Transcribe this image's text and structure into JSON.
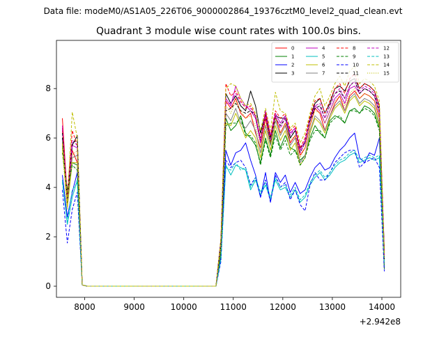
{
  "chart_data": {
    "type": "line",
    "suptitle": "Data file: modeM0/AS1A05_226T06_9000002864_19376cztM0_level2_quad_clean.evt",
    "title": "Quadrant 3 module wise count rates with 100.0s bins.",
    "xlabel": "",
    "ylabel": "",
    "x_offset_label": "+2.942e8",
    "x_offset": 294200000,
    "xlim": [
      7430,
      14380
    ],
    "ylim": [
      -0.45,
      9.95
    ],
    "xticks": [
      8000,
      9000,
      10000,
      11000,
      12000,
      13000,
      14000
    ],
    "xtick_labels": [
      "8000",
      "9000",
      "10000",
      "11000",
      "12000",
      "13000",
      "14000"
    ],
    "yticks": [
      0,
      2,
      4,
      6,
      8
    ],
    "ytick_labels": [
      "0",
      "2",
      "4",
      "6",
      "8"
    ],
    "legend_position": "top-right",
    "x": [
      7550,
      7650,
      7750,
      7850,
      7950,
      8050,
      8150,
      8250,
      8350,
      8450,
      8550,
      8650,
      8750,
      8850,
      8950,
      9050,
      9150,
      9250,
      9350,
      9450,
      9550,
      9650,
      9750,
      9850,
      9950,
      10050,
      10150,
      10250,
      10350,
      10450,
      10550,
      10650,
      10750,
      10850,
      10950,
      11050,
      11150,
      11250,
      11350,
      11450,
      11550,
      11650,
      11750,
      11850,
      11950,
      12050,
      12150,
      12250,
      12350,
      12450,
      12550,
      12650,
      12750,
      12850,
      12950,
      13050,
      13150,
      13250,
      13350,
      13450,
      13550,
      13650,
      13750,
      13850,
      13950,
      14050
    ],
    "series": [
      {
        "name": "0",
        "color": "#ff0000",
        "dash": "solid",
        "values": [
          6.8,
          3.6,
          5.5,
          5.0,
          0.05,
          0,
          0,
          0,
          0,
          0,
          0,
          0,
          0,
          0,
          0,
          0,
          0,
          0,
          0,
          0,
          0,
          0,
          0,
          0,
          0,
          0,
          0,
          0,
          0,
          0,
          0,
          0,
          1.8,
          7.5,
          7.2,
          7.6,
          7.0,
          6.8,
          7.0,
          6.2,
          5.6,
          6.8,
          5.8,
          6.9,
          6.2,
          6.6,
          5.8,
          6.1,
          5.3,
          5.6,
          6.5,
          7.2,
          7.0,
          6.3,
          6.9,
          7.4,
          7.7,
          7.1,
          7.7,
          7.9,
          7.6,
          7.8,
          7.7,
          7.5,
          6.8,
          1.5
        ]
      },
      {
        "name": "1",
        "color": "#008000",
        "dash": "solid",
        "values": [
          5.6,
          3.9,
          5.0,
          4.9,
          0.05,
          0,
          0,
          0,
          0,
          0,
          0,
          0,
          0,
          0,
          0,
          0,
          0,
          0,
          0,
          0,
          0,
          0,
          0,
          0,
          0,
          0,
          0,
          0,
          0,
          0,
          0,
          0,
          1.4,
          6.8,
          6.3,
          6.5,
          6.9,
          6.2,
          6.0,
          5.7,
          5.0,
          6.0,
          5.3,
          6.3,
          5.6,
          6.1,
          5.6,
          5.5,
          5.1,
          5.3,
          6.0,
          6.5,
          6.2,
          6.0,
          6.7,
          6.9,
          6.8,
          6.6,
          7.1,
          7.2,
          7.0,
          7.3,
          7.2,
          7.0,
          6.4,
          0.7
        ]
      },
      {
        "name": "2",
        "color": "#0000ff",
        "dash": "solid",
        "values": [
          4.5,
          2.8,
          3.8,
          4.6,
          0.05,
          0,
          0,
          0,
          0,
          0,
          0,
          0,
          0,
          0,
          0,
          0,
          0,
          0,
          0,
          0,
          0,
          0,
          0,
          0,
          0,
          0,
          0,
          0,
          0,
          0,
          0,
          0,
          1.2,
          5.5,
          4.9,
          5.4,
          5.5,
          5.8,
          5.1,
          4.5,
          3.6,
          4.6,
          3.4,
          4.6,
          4.2,
          4.5,
          3.8,
          4.2,
          3.75,
          3.9,
          4.4,
          4.8,
          5.0,
          4.7,
          4.8,
          5.2,
          5.5,
          5.7,
          6.0,
          6.2,
          5.2,
          5.0,
          5.4,
          5.3,
          6.0,
          1.2
        ]
      },
      {
        "name": "3",
        "color": "#000000",
        "dash": "solid",
        "values": [
          6.0,
          3.5,
          5.7,
          6.1,
          0.05,
          0,
          0,
          0,
          0,
          0,
          0,
          0,
          0,
          0,
          0,
          0,
          0,
          0,
          0,
          0,
          0,
          0,
          0,
          0,
          0,
          0,
          0,
          0,
          0,
          0,
          0,
          0,
          1.9,
          7.8,
          7.4,
          7.7,
          7.3,
          7.1,
          7.9,
          7.3,
          6.2,
          7.0,
          6.0,
          6.9,
          6.8,
          6.8,
          6.0,
          6.3,
          5.6,
          5.8,
          6.8,
          7.4,
          7.6,
          7.0,
          7.4,
          8.0,
          8.1,
          7.9,
          8.3,
          8.4,
          8.0,
          8.2,
          8.1,
          7.9,
          7.3,
          1.4
        ]
      },
      {
        "name": "4",
        "color": "#bf00bf",
        "dash": "solid",
        "values": [
          6.4,
          3.3,
          5.7,
          5.6,
          0.05,
          0,
          0,
          0,
          0,
          0,
          0,
          0,
          0,
          0,
          0,
          0,
          0,
          0,
          0,
          0,
          0,
          0,
          0,
          0,
          0,
          0,
          0,
          0,
          0,
          0,
          0,
          0,
          1.8,
          7.6,
          7.3,
          8.1,
          7.6,
          7.3,
          7.1,
          6.8,
          5.8,
          7.1,
          6.1,
          7.0,
          6.6,
          6.9,
          6.2,
          6.4,
          5.5,
          5.9,
          6.7,
          7.3,
          7.1,
          6.6,
          7.1,
          7.6,
          7.8,
          7.4,
          8.0,
          8.1,
          7.8,
          8.0,
          7.9,
          7.7,
          7.0,
          1.3
        ]
      },
      {
        "name": "5",
        "color": "#00bfbf",
        "dash": "solid",
        "values": [
          4.3,
          2.5,
          3.6,
          4.3,
          0.05,
          0,
          0,
          0,
          0,
          0,
          0,
          0,
          0,
          0,
          0,
          0,
          0,
          0,
          0,
          0,
          0,
          0,
          0,
          0,
          0,
          0,
          0,
          0,
          0,
          0,
          0,
          0,
          1.1,
          4.9,
          4.5,
          4.9,
          4.8,
          4.7,
          3.9,
          4.3,
          3.7,
          4.1,
          3.5,
          4.3,
          3.9,
          4.0,
          3.6,
          3.9,
          3.4,
          3.6,
          4.1,
          4.4,
          4.6,
          4.3,
          4.5,
          4.8,
          5.0,
          5.1,
          5.3,
          5.4,
          5.0,
          5.1,
          5.2,
          5.1,
          5.2,
          0.9
        ]
      },
      {
        "name": "6",
        "color": "#bfbf00",
        "dash": "solid",
        "values": [
          5.7,
          3.2,
          5.0,
          5.0,
          0.05,
          0,
          0,
          0,
          0,
          0,
          0,
          0,
          0,
          0,
          0,
          0,
          0,
          0,
          0,
          0,
          0,
          0,
          0,
          0,
          0,
          0,
          0,
          0,
          0,
          0,
          0,
          0,
          1.5,
          6.6,
          6.5,
          7.0,
          6.5,
          6.0,
          6.3,
          6.0,
          5.2,
          6.3,
          5.5,
          6.5,
          5.9,
          6.3,
          5.5,
          5.8,
          4.9,
          5.2,
          6.2,
          6.8,
          6.6,
          6.2,
          6.8,
          7.2,
          7.4,
          7.0,
          7.5,
          7.7,
          7.3,
          7.5,
          7.4,
          7.2,
          6.5,
          0.9
        ]
      },
      {
        "name": "7",
        "color": "#808080",
        "dash": "solid",
        "values": [
          5.9,
          3.4,
          5.2,
          5.3,
          0.05,
          0,
          0,
          0,
          0,
          0,
          0,
          0,
          0,
          0,
          0,
          0,
          0,
          0,
          0,
          0,
          0,
          0,
          0,
          0,
          0,
          0,
          0,
          0,
          0,
          0,
          0,
          0,
          1.6,
          7.0,
          6.7,
          7.2,
          6.6,
          6.4,
          6.7,
          6.3,
          5.4,
          6.5,
          5.7,
          6.7,
          6.1,
          6.5,
          5.7,
          6.0,
          5.0,
          5.3,
          6.3,
          6.9,
          6.7,
          6.3,
          6.9,
          7.3,
          7.5,
          7.1,
          7.6,
          7.8,
          7.4,
          7.6,
          7.5,
          7.3,
          6.6,
          1.0
        ]
      },
      {
        "name": "8",
        "color": "#ff0000",
        "dash": "dashed",
        "values": [
          6.3,
          3.7,
          6.3,
          5.7,
          0.05,
          0,
          0,
          0,
          0,
          0,
          0,
          0,
          0,
          0,
          0,
          0,
          0,
          0,
          0,
          0,
          0,
          0,
          0,
          0,
          0,
          0,
          0,
          0,
          0,
          0,
          0,
          0,
          1.9,
          8.2,
          7.7,
          7.9,
          7.5,
          7.2,
          7.3,
          6.9,
          6.0,
          7.0,
          6.1,
          7.1,
          6.8,
          7.0,
          6.3,
          6.5,
          5.6,
          6.0,
          6.9,
          7.5,
          7.6,
          7.0,
          7.5,
          8.0,
          8.2,
          7.8,
          8.4,
          8.6,
          8.0,
          8.2,
          8.1,
          7.9,
          7.3,
          1.2
        ]
      },
      {
        "name": "9",
        "color": "#008000",
        "dash": "dashed",
        "values": [
          5.4,
          3.8,
          4.9,
          4.7,
          0.05,
          0,
          0,
          0,
          0,
          0,
          0,
          0,
          0,
          0,
          0,
          0,
          0,
          0,
          0,
          0,
          0,
          0,
          0,
          0,
          0,
          0,
          0,
          0,
          0,
          0,
          0,
          0,
          1.4,
          6.5,
          6.6,
          6.6,
          6.8,
          6.1,
          6.1,
          5.8,
          4.9,
          5.9,
          5.2,
          6.1,
          5.5,
          5.9,
          5.3,
          5.5,
          4.9,
          5.2,
          5.9,
          6.3,
          6.3,
          6.0,
          6.6,
          6.8,
          6.9,
          6.6,
          7.1,
          7.1,
          7.0,
          7.2,
          7.1,
          6.9,
          6.3,
          0.7
        ]
      },
      {
        "name": "10",
        "color": "#0000ff",
        "dash": "dashed",
        "values": [
          3.9,
          1.75,
          3.1,
          3.8,
          0.05,
          0,
          0,
          0,
          0,
          0,
          0,
          0,
          0,
          0,
          0,
          0,
          0,
          0,
          0,
          0,
          0,
          0,
          0,
          0,
          0,
          0,
          0,
          0,
          0,
          0,
          0,
          0,
          1.0,
          5.1,
          4.8,
          5.0,
          5.1,
          4.8,
          4.1,
          4.4,
          3.6,
          4.3,
          3.4,
          4.5,
          4.0,
          4.2,
          3.5,
          3.9,
          3.3,
          3.05,
          4.1,
          4.6,
          4.3,
          4.3,
          4.6,
          5.0,
          5.2,
          5.4,
          5.5,
          5.5,
          4.8,
          5.0,
          5.1,
          5.2,
          4.8,
          0.6
        ]
      },
      {
        "name": "11",
        "color": "#000000",
        "dash": "dashed",
        "values": [
          6.2,
          3.4,
          5.8,
          5.9,
          0.05,
          0,
          0,
          0,
          0,
          0,
          0,
          0,
          0,
          0,
          0,
          0,
          0,
          0,
          0,
          0,
          0,
          0,
          0,
          0,
          0,
          0,
          0,
          0,
          0,
          0,
          0,
          0,
          1.7,
          7.1,
          7.2,
          7.4,
          7.1,
          7.0,
          7.1,
          6.9,
          5.9,
          6.9,
          5.8,
          6.8,
          6.5,
          6.8,
          6.0,
          6.3,
          5.4,
          5.8,
          6.7,
          7.2,
          7.3,
          6.8,
          7.3,
          7.8,
          7.9,
          7.6,
          8.1,
          8.3,
          7.8,
          8.0,
          7.9,
          7.7,
          7.1,
          1.1
        ]
      },
      {
        "name": "12",
        "color": "#bf00bf",
        "dash": "dashed",
        "values": [
          6.5,
          3.5,
          5.9,
          5.7,
          0.05,
          0,
          0,
          0,
          0,
          0,
          0,
          0,
          0,
          0,
          0,
          0,
          0,
          0,
          0,
          0,
          0,
          0,
          0,
          0,
          0,
          0,
          0,
          0,
          0,
          0,
          0,
          0,
          1.8,
          7.4,
          7.4,
          7.8,
          7.4,
          7.3,
          7.2,
          6.9,
          5.9,
          6.9,
          5.9,
          6.9,
          6.4,
          6.8,
          6.1,
          6.4,
          5.4,
          5.8,
          6.8,
          7.3,
          7.4,
          6.8,
          7.3,
          7.8,
          8.0,
          7.6,
          8.1,
          8.3,
          7.9,
          8.1,
          8.0,
          7.8,
          7.2,
          1.2
        ]
      },
      {
        "name": "13",
        "color": "#00bfbf",
        "dash": "dashed",
        "values": [
          4.2,
          2.6,
          3.9,
          4.2,
          0.05,
          0,
          0,
          0,
          0,
          0,
          0,
          0,
          0,
          0,
          0,
          0,
          0,
          0,
          0,
          0,
          0,
          0,
          0,
          0,
          0,
          0,
          0,
          0,
          0,
          0,
          0,
          0,
          1.1,
          4.8,
          4.7,
          5.0,
          4.7,
          4.8,
          4.0,
          4.4,
          3.8,
          4.2,
          3.6,
          4.4,
          4.0,
          4.1,
          3.7,
          4.0,
          3.5,
          3.7,
          4.2,
          4.5,
          4.7,
          4.4,
          4.6,
          4.9,
          5.1,
          5.2,
          5.4,
          5.5,
          5.1,
          5.2,
          5.3,
          5.2,
          5.3,
          0.9
        ]
      },
      {
        "name": "14",
        "color": "#bfbf00",
        "dash": "dashed",
        "values": [
          5.8,
          3.4,
          7.05,
          6.0,
          0.05,
          0,
          0,
          0,
          0,
          0,
          0,
          0,
          0,
          0,
          0,
          0,
          0,
          0,
          0,
          0,
          0,
          0,
          0,
          0,
          0,
          0,
          0,
          0,
          0,
          0,
          0,
          0,
          1.9,
          8.0,
          8.2,
          8.1,
          7.6,
          7.3,
          7.4,
          7.0,
          6.3,
          7.2,
          6.3,
          7.85,
          7.1,
          7.0,
          6.4,
          6.6,
          5.8,
          6.2,
          7.0,
          7.7,
          8.0,
          7.3,
          7.7,
          8.2,
          8.5,
          8.1,
          8.7,
          8.9,
          8.2,
          8.4,
          8.3,
          8.1,
          7.5,
          1.3
        ]
      },
      {
        "name": "15",
        "color": "#bfbf00",
        "dash": "dotted",
        "values": [
          5.5,
          3.1,
          5.3,
          5.5,
          0.05,
          0,
          0,
          0,
          0,
          0,
          0,
          0,
          0,
          0,
          0,
          0,
          0,
          0,
          0,
          0,
          0,
          0,
          0,
          0,
          0,
          0,
          0,
          0,
          0,
          0,
          0,
          0,
          1.6,
          7.3,
          7.0,
          7.5,
          7.1,
          6.8,
          6.9,
          6.5,
          5.6,
          6.6,
          5.8,
          6.8,
          6.2,
          6.6,
          5.9,
          6.1,
          5.2,
          5.6,
          6.5,
          7.1,
          7.0,
          6.6,
          7.1,
          7.5,
          7.7,
          7.3,
          7.8,
          8.0,
          7.6,
          7.8,
          7.7,
          7.5,
          6.9,
          1.1
        ]
      }
    ]
  }
}
